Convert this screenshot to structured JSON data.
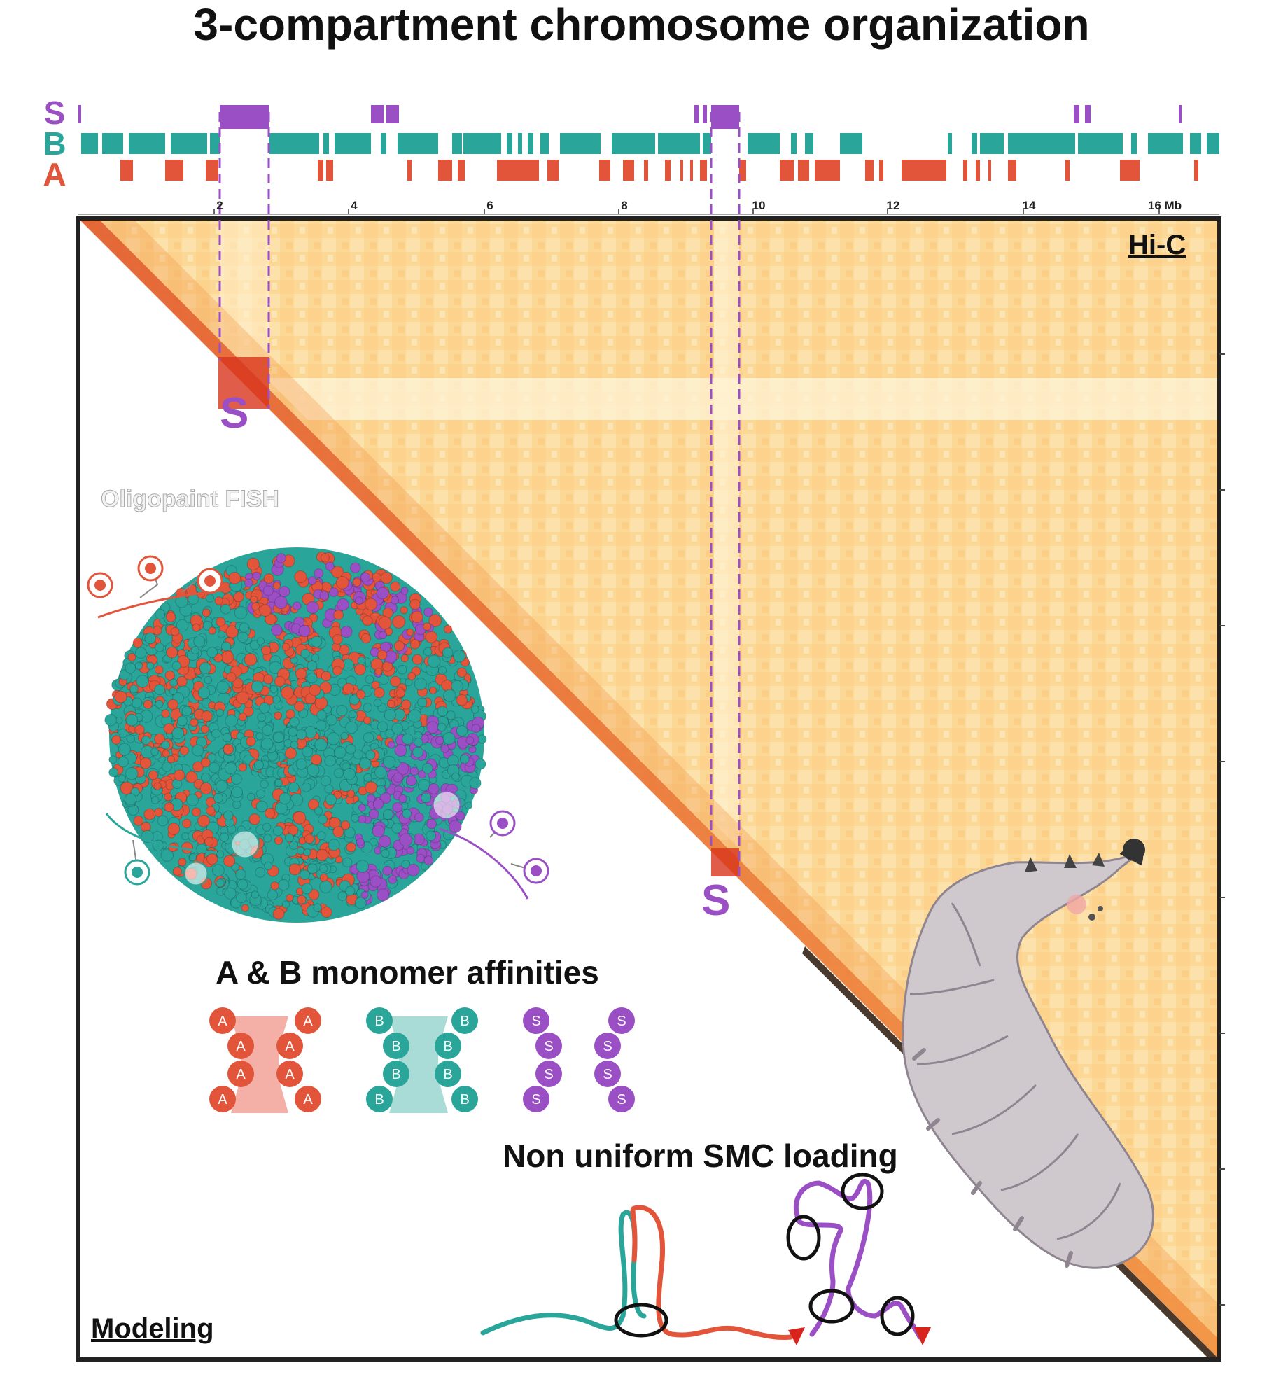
{
  "title": "3-compartment chromosome organization",
  "tracks": {
    "s_label": "S",
    "b_label": "B",
    "a_label": "A",
    "colors": {
      "S": "#9b4fc5",
      "B": "#2aa59a",
      "A": "#e2553a"
    }
  },
  "axis": {
    "ticks": [
      "2",
      "4",
      "6",
      "8",
      "10",
      "12",
      "14",
      "16 Mb"
    ]
  },
  "hic_label": "Hi-C",
  "modeling_label": "Modeling",
  "s_marker_1": "S",
  "s_marker_2": "S",
  "fish_label": "Oligopaint FISH",
  "affinities_label": "A & B monomer affinities",
  "smc_label": "Non uniform SMC loading",
  "affinity_monomers": {
    "a": "A",
    "b": "B",
    "s": "S"
  }
}
